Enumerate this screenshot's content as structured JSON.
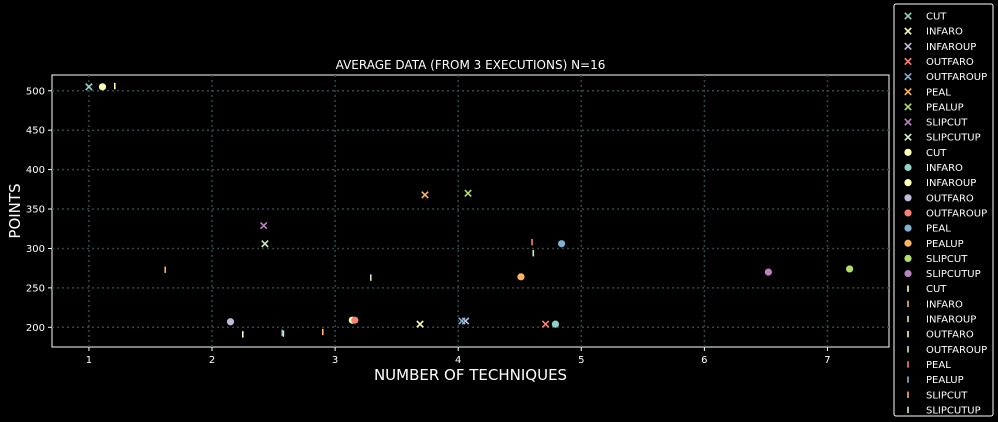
{
  "chart_data": {
    "type": "scatter",
    "title": "AVERAGE DATA (FROM 3 EXECUTIONS) N=16",
    "xlabel": "NUMBER OF TECHNIQUES",
    "ylabel": "POINTS",
    "xlim": [
      0.7,
      7.5
    ],
    "ylim": [
      175,
      520
    ],
    "xticks": [
      1,
      2,
      3,
      4,
      5,
      6,
      7
    ],
    "yticks": [
      200,
      250,
      300,
      350,
      400,
      450,
      500
    ],
    "grid": true,
    "legend_position": "outside-right",
    "colors": [
      "#8dd3c7",
      "#feffb3",
      "#bfbbd9",
      "#fa8174",
      "#81b1d2",
      "#fdb462",
      "#b3de69",
      "#bc82bd",
      "#ccebc4"
    ],
    "series": [
      {
        "name": "CUT",
        "marker": "x",
        "color": "#8dd3c7",
        "points": [
          [
            1.0,
            505
          ]
        ]
      },
      {
        "name": "INFARO",
        "marker": "x",
        "color": "#feffb3",
        "points": [
          [
            3.69,
            204
          ]
        ]
      },
      {
        "name": "INFAROUP",
        "marker": "x",
        "color": "#bfbbd9",
        "points": [
          [
            4.06,
            208
          ]
        ]
      },
      {
        "name": "OUTFARO",
        "marker": "x",
        "color": "#fa8174",
        "points": [
          [
            4.71,
            204
          ]
        ]
      },
      {
        "name": "OUTFAROUP",
        "marker": "x",
        "color": "#81b1d2",
        "points": [
          [
            4.03,
            208
          ]
        ]
      },
      {
        "name": "PEAL",
        "marker": "x",
        "color": "#fdb462",
        "points": [
          [
            3.73,
            368
          ]
        ]
      },
      {
        "name": "PEALUP",
        "marker": "x",
        "color": "#b3de69",
        "points": [
          [
            4.08,
            370
          ]
        ]
      },
      {
        "name": "SLIPCUT",
        "marker": "x",
        "color": "#bc82bd",
        "points": [
          [
            2.42,
            329
          ]
        ]
      },
      {
        "name": "SLIPCUTUP",
        "marker": "x",
        "color": "#ccebc4",
        "points": [
          [
            2.43,
            306
          ]
        ]
      },
      {
        "name": "CUT",
        "marker": "o",
        "color": "#feffb3",
        "points": [
          [
            1.11,
            505
          ]
        ]
      },
      {
        "name": "INFARO",
        "marker": "o",
        "color": "#8dd3c7",
        "points": [
          [
            4.79,
            204
          ]
        ]
      },
      {
        "name": "INFAROUP",
        "marker": "o",
        "color": "#feffb3",
        "points": [
          [
            3.14,
            209
          ]
        ]
      },
      {
        "name": "OUTFARO",
        "marker": "o",
        "color": "#bfbbd9",
        "points": [
          [
            2.15,
            207
          ]
        ]
      },
      {
        "name": "OUTFAROUP",
        "marker": "o",
        "color": "#fa8174",
        "points": [
          [
            3.16,
            209
          ]
        ]
      },
      {
        "name": "PEAL",
        "marker": "o",
        "color": "#81b1d2",
        "points": [
          [
            4.84,
            306
          ]
        ]
      },
      {
        "name": "PEALUP",
        "marker": "o",
        "color": "#fdb462",
        "points": [
          [
            4.51,
            264
          ]
        ]
      },
      {
        "name": "SLIPCUT",
        "marker": "o",
        "color": "#b3de69",
        "points": [
          [
            7.18,
            274
          ]
        ]
      },
      {
        "name": "SLIPCUTUP",
        "marker": "o",
        "color": "#bc82bd",
        "points": [
          [
            6.52,
            270
          ]
        ]
      },
      {
        "name": "CUT",
        "marker": "|",
        "color": "#feffb3",
        "points": [
          [
            1.21,
            506
          ]
        ]
      },
      {
        "name": "INFARO",
        "marker": "|",
        "color": "#fdb462",
        "points": [
          [
            2.9,
            194
          ]
        ]
      },
      {
        "name": "INFAROUP",
        "marker": "|",
        "color": "#ccebc4",
        "points": [
          [
            3.29,
            263
          ]
        ]
      },
      {
        "name": "OUTFARO",
        "marker": "|",
        "color": "#feffb3",
        "points": [
          [
            2.25,
            191
          ]
        ]
      },
      {
        "name": "OUTFAROUP",
        "marker": "|",
        "color": "#ccebc4",
        "points": [
          [
            4.61,
            294
          ]
        ]
      },
      {
        "name": "PEAL",
        "marker": "|",
        "color": "#fa8174",
        "points": [
          [
            4.6,
            308
          ]
        ]
      },
      {
        "name": "PEALUP",
        "marker": "|",
        "color": "#81b1d2",
        "points": [
          [
            2.57,
            193
          ]
        ]
      },
      {
        "name": "SLIPCUT",
        "marker": "|",
        "color": "#fdb462",
        "points": [
          [
            1.62,
            273
          ]
        ]
      },
      {
        "name": "SLIPCUTUP",
        "marker": "|",
        "color": "#ccebc4",
        "points": [
          [
            2.58,
            192
          ]
        ]
      }
    ]
  }
}
